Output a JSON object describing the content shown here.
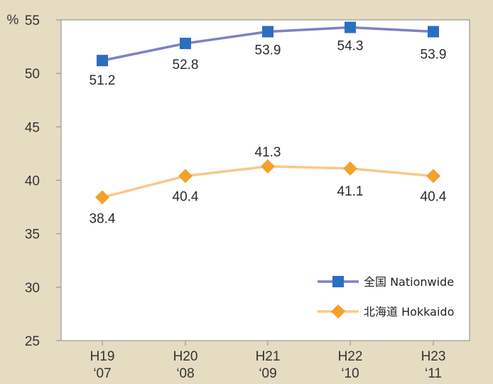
{
  "chart_data": {
    "type": "line",
    "unit": "%",
    "categories": [
      [
        "H19",
        "‘07"
      ],
      [
        "H20",
        "‘08"
      ],
      [
        "H21",
        "‘09"
      ],
      [
        "H22",
        "‘10"
      ],
      [
        "H23",
        "‘11"
      ]
    ],
    "ylim": [
      25,
      55
    ],
    "yticks": [
      25,
      30,
      35,
      40,
      45,
      50,
      55
    ],
    "grid": false,
    "legend_position": "bottom-right",
    "series": [
      {
        "name": "全国 Nationwide",
        "values": [
          51.2,
          52.8,
          53.9,
          54.3,
          53.9
        ],
        "labels": [
          "51.2",
          "52.8",
          "53.9",
          "54.3",
          "53.9"
        ],
        "marker": "square",
        "color": "#2a6fc0",
        "line_color": "#7f80c4"
      },
      {
        "name": "北海道 Hokkaido",
        "values": [
          38.4,
          40.4,
          41.3,
          41.1,
          40.4
        ],
        "labels": [
          "38.4",
          "40.4",
          "41.3",
          "41.1",
          "40.4"
        ],
        "marker": "diamond",
        "color": "#f4a12c",
        "line_color": "#f8c98a"
      }
    ]
  }
}
